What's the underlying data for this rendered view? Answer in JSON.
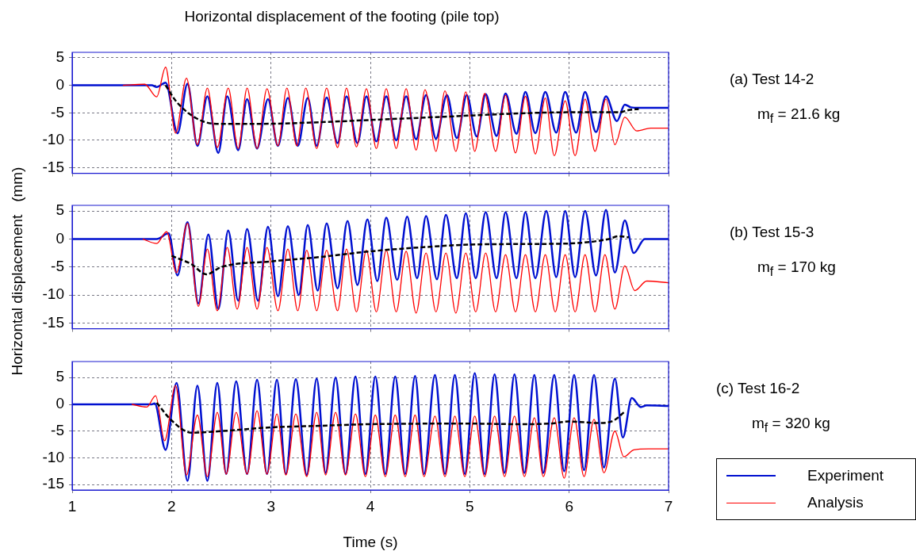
{
  "chart_data": [
    {
      "type": "line",
      "title": "Horizontal displacement of the footing (pile top)",
      "annotations": [
        "(a) Test 14-2",
        "m$_{f}$ = 21.6 kg"
      ],
      "xlim": [
        1,
        7
      ],
      "xticks": [
        1,
        2,
        3,
        4,
        5,
        6,
        7
      ],
      "ylim": [
        -16,
        6
      ],
      "yticks": [
        -15,
        -10,
        -5,
        0,
        5
      ],
      "grid": true,
      "tick_labels": "y",
      "marker": "none",
      "series": [
        {
          "color": "#0010d0",
          "line_style": "solid",
          "x": [
            1,
            1.8,
            1.85,
            1.94,
            2.06,
            2.16,
            2.26,
            2.36,
            2.47,
            2.56,
            2.67,
            2.76,
            2.86,
            2.97,
            3.07,
            3.17,
            3.27,
            3.37,
            3.46,
            3.56,
            3.67,
            3.76,
            3.87,
            3.96,
            4.06,
            4.16,
            4.26,
            4.36,
            4.46,
            4.56,
            4.66,
            4.77,
            4.87,
            4.97,
            5.07,
            5.16,
            5.27,
            5.36,
            5.47,
            5.56,
            5.66,
            5.76,
            5.87,
            5.96,
            6.07,
            6.16,
            6.27,
            6.37,
            6.48,
            6.56,
            6.62,
            6.7,
            7
          ],
          "values": [
            0,
            0,
            -0.3,
            0.5,
            -8.7,
            0.3,
            -11,
            -2,
            -12.3,
            -2,
            -11.8,
            -2.5,
            -11.5,
            -2.5,
            -11,
            -2.3,
            -11,
            -2.3,
            -11,
            -2.2,
            -10.5,
            -2,
            -10.5,
            -2,
            -10.2,
            -2,
            -10,
            -2,
            -9.8,
            -1.8,
            -9.7,
            -1.8,
            -9.6,
            -1.8,
            -9.3,
            -1.6,
            -9.2,
            -1.5,
            -8.8,
            -1.2,
            -8.7,
            -1.2,
            -8.6,
            -1.2,
            -8.6,
            -1.2,
            -8.5,
            -2,
            -6.5,
            -3.5,
            -4,
            -4.1,
            -4.1
          ]
        },
        {
          "color": "#ff0000",
          "line_style": "solid",
          "x": [
            1.51,
            1.73,
            1.85,
            1.94,
            2.04,
            2.15,
            2.26,
            2.36,
            2.46,
            2.57,
            2.67,
            2.76,
            2.86,
            2.96,
            3.07,
            3.16,
            3.26,
            3.35,
            3.46,
            3.56,
            3.67,
            3.76,
            3.86,
            3.96,
            4.06,
            4.16,
            4.26,
            4.36,
            4.46,
            4.55,
            4.66,
            4.75,
            4.86,
            4.96,
            5.05,
            5.15,
            5.26,
            5.36,
            5.46,
            5.56,
            5.66,
            5.76,
            5.85,
            5.96,
            6.06,
            6.16,
            6.26,
            6.37,
            6.46,
            6.56,
            6.68,
            6.82,
            7
          ],
          "values": [
            0,
            0.2,
            -2.1,
            3.3,
            -8.7,
            1.3,
            -10.8,
            -0.5,
            -11.3,
            -0.5,
            -11.5,
            -0.5,
            -11.5,
            -0.6,
            -11,
            -0.5,
            -11,
            -0.5,
            -11.5,
            -0.5,
            -11.3,
            -0.5,
            -11.2,
            -0.6,
            -11.5,
            -0.6,
            -11.5,
            -0.6,
            -11.8,
            -0.8,
            -12,
            -1,
            -12,
            -1.2,
            -12,
            -1.5,
            -12,
            -1.8,
            -12.3,
            -2,
            -12.5,
            -2.3,
            -12.8,
            -2.8,
            -12.8,
            -2.5,
            -12,
            -2.5,
            -10.8,
            -5.8,
            -8.3,
            -7.8,
            -7.8
          ]
        },
        {
          "color": "#000000",
          "line_style": "dashed",
          "x": [
            1.94,
            2.05,
            2.25,
            2.45,
            2.9,
            3.5,
            4,
            4.5,
            5,
            5.5,
            6,
            6.5,
            6.6,
            6.7
          ],
          "values": [
            0,
            -3,
            -6,
            -7,
            -7,
            -6.7,
            -6.3,
            -5.9,
            -5.5,
            -5.1,
            -4.9,
            -4.9,
            -4.5,
            -4.3
          ]
        }
      ]
    },
    {
      "type": "line",
      "ylabel": "Horizontal displacement   (mm)",
      "annotations": [
        "(b) Test 15-3",
        "m$_{f}$ = 170 kg"
      ],
      "xlim": [
        1,
        7
      ],
      "xticks": [
        1,
        2,
        3,
        4,
        5,
        6,
        7
      ],
      "ylim": [
        -16,
        6
      ],
      "yticks": [
        -15,
        -10,
        -5,
        0,
        5
      ],
      "grid": true,
      "tick_labels": "y",
      "marker": "none",
      "series": [
        {
          "color": "#0010d0",
          "line_style": "solid",
          "x": [
            1,
            1.85,
            1.97,
            2.06,
            2.16,
            2.27,
            2.37,
            2.47,
            2.57,
            2.67,
            2.76,
            2.87,
            2.97,
            3.07,
            3.17,
            3.28,
            3.37,
            3.47,
            3.56,
            3.67,
            3.77,
            3.87,
            3.97,
            4.07,
            4.16,
            4.27,
            4.37,
            4.47,
            4.56,
            4.67,
            4.76,
            4.87,
            4.96,
            5.06,
            5.16,
            5.27,
            5.36,
            5.47,
            5.56,
            5.66,
            5.77,
            5.87,
            5.96,
            6.06,
            6.16,
            6.27,
            6.37,
            6.46,
            6.56,
            6.65,
            6.76,
            7
          ],
          "values": [
            0,
            0,
            1,
            -6.5,
            3,
            -11.5,
            0.8,
            -12.5,
            1.5,
            -11,
            1.8,
            -11,
            2.2,
            -10.2,
            2.3,
            -10,
            2.5,
            -9.2,
            2.8,
            -8.8,
            3.2,
            -8.2,
            3.5,
            -7.5,
            3.8,
            -7.3,
            4,
            -7,
            4.1,
            -7.2,
            4.3,
            -7,
            4.6,
            -7,
            4.8,
            -7,
            4.8,
            -7,
            4.8,
            -7,
            5,
            -6.8,
            5,
            -6.8,
            5,
            -6.5,
            5.2,
            -6,
            3.3,
            -2.5,
            0,
            0
          ]
        },
        {
          "color": "#ff0000",
          "line_style": "solid",
          "x": [
            1.71,
            1.85,
            1.95,
            2.05,
            2.16,
            2.27,
            2.36,
            2.46,
            2.56,
            2.66,
            2.76,
            2.86,
            2.96,
            3.07,
            3.17,
            3.27,
            3.36,
            3.46,
            3.56,
            3.67,
            3.76,
            3.86,
            3.96,
            4.06,
            4.16,
            4.26,
            4.36,
            4.46,
            4.56,
            4.66,
            4.76,
            4.86,
            4.96,
            5.06,
            5.16,
            5.26,
            5.36,
            5.46,
            5.56,
            5.66,
            5.76,
            5.86,
            5.96,
            6.06,
            6.16,
            6.26,
            6.36,
            6.46,
            6.56,
            6.66,
            6.78,
            7
          ],
          "values": [
            0,
            -0.8,
            1.3,
            -6,
            2.8,
            -12,
            -1.8,
            -12.8,
            -1.5,
            -12.5,
            -1.5,
            -12.5,
            -1.5,
            -12.8,
            -1.8,
            -12.8,
            -2,
            -12.8,
            -2,
            -12.8,
            -1.8,
            -13,
            -2,
            -13,
            -2,
            -13,
            -2.2,
            -13.2,
            -2.5,
            -13,
            -2.5,
            -13.2,
            -2.5,
            -13,
            -2.5,
            -13,
            -2.8,
            -13,
            -2.8,
            -13,
            -2.8,
            -13,
            -2.8,
            -13,
            -2.8,
            -13,
            -2.8,
            -12.5,
            -4.8,
            -9.2,
            -7.5,
            -7.8
          ]
        },
        {
          "color": "#000000",
          "line_style": "dashed",
          "x": [
            2,
            2.2,
            2.35,
            2.5,
            3,
            3.5,
            4,
            4.5,
            5,
            5.5,
            6,
            6.4,
            6.5,
            6.6
          ],
          "values": [
            -3,
            -4.5,
            -6.3,
            -5,
            -4,
            -3.2,
            -2.2,
            -1.5,
            -1,
            -0.9,
            -0.8,
            0,
            0.5,
            0.3
          ]
        }
      ]
    },
    {
      "type": "line",
      "xlabel": "Time (s)",
      "annotations": [
        "(c) Test 16-2",
        "m$_{f}$ = 320 kg"
      ],
      "xlim": [
        1,
        7
      ],
      "xticks": [
        1,
        2,
        3,
        4,
        5,
        6,
        7
      ],
      "ylim": [
        -16,
        8
      ],
      "yticks": [
        -15,
        -10,
        -5,
        0,
        5
      ],
      "grid": true,
      "legend": "right",
      "marker": "none",
      "series": [
        {
          "name": "Experiment",
          "color": "#0010d0",
          "line_style": "solid",
          "x": [
            1,
            1.8,
            1.83,
            1.94,
            2.05,
            2.16,
            2.26,
            2.36,
            2.46,
            2.55,
            2.65,
            2.76,
            2.86,
            2.96,
            3.06,
            3.15,
            3.25,
            3.36,
            3.46,
            3.55,
            3.65,
            3.75,
            3.85,
            3.95,
            4.05,
            4.15,
            4.25,
            4.35,
            4.45,
            4.54,
            4.65,
            4.75,
            4.85,
            4.95,
            5.05,
            5.15,
            5.25,
            5.35,
            5.45,
            5.55,
            5.65,
            5.74,
            5.85,
            5.95,
            6.05,
            6.15,
            6.25,
            6.35,
            6.46,
            6.54,
            6.63,
            6.72,
            6.78,
            7
          ],
          "values": [
            0,
            0,
            0.2,
            -8.5,
            4,
            -14.3,
            3.5,
            -14.3,
            4,
            -13,
            4.3,
            -13,
            4.6,
            -13,
            4.6,
            -13,
            4.7,
            -13.2,
            4.8,
            -12.8,
            5,
            -13,
            5.2,
            -13,
            5.2,
            -13,
            5.2,
            -13,
            5.3,
            -13,
            5.5,
            -13,
            5.5,
            -13,
            5.8,
            -13,
            5.6,
            -12.8,
            5.6,
            -12.8,
            5.5,
            -12.8,
            5.5,
            -12.5,
            5.5,
            -12.3,
            5.5,
            -11.8,
            4.8,
            -6.2,
            1.2,
            -0.5,
            -0.2,
            -0.3
          ]
        },
        {
          "name": "Analysis",
          "color": "#ff0000",
          "line_style": "solid",
          "x": [
            1.6,
            1.75,
            1.84,
            1.93,
            2.04,
            2.15,
            2.26,
            2.36,
            2.46,
            2.55,
            2.65,
            2.76,
            2.86,
            2.96,
            3.06,
            3.15,
            3.25,
            3.36,
            3.46,
            3.55,
            3.65,
            3.75,
            3.85,
            3.95,
            4.05,
            4.15,
            4.25,
            4.35,
            4.45,
            4.54,
            4.65,
            4.75,
            4.85,
            4.95,
            5.05,
            5.15,
            5.25,
            5.35,
            5.45,
            5.55,
            5.65,
            5.74,
            5.85,
            5.95,
            6.05,
            6.15,
            6.25,
            6.35,
            6.46,
            6.55,
            6.65,
            6.8,
            7
          ],
          "values": [
            0,
            -0.5,
            1.6,
            -6.8,
            3.5,
            -13.2,
            -2,
            -13.5,
            -1.5,
            -13,
            -1.5,
            -13,
            -1.2,
            -13,
            -1.8,
            -13.2,
            -1.8,
            -13.5,
            -1.5,
            -13.2,
            -1.5,
            -13.2,
            -1.8,
            -13.5,
            -2,
            -13.5,
            -2,
            -13.5,
            -2,
            -13.5,
            -2.2,
            -13.5,
            -2.2,
            -13.5,
            -2.2,
            -13.5,
            -2.2,
            -13.5,
            -2.2,
            -13.5,
            -2.5,
            -13.5,
            -2.5,
            -13.8,
            -2.5,
            -13.5,
            -2.8,
            -12.8,
            -5,
            -9.8,
            -8.5,
            -8.3,
            -8.3
          ]
        },
        {
          "color": "#000000",
          "line_style": "dashed",
          "x": [
            1.85,
            2,
            2.2,
            2.5,
            3,
            3.5,
            4,
            5,
            5.5,
            5.8,
            6,
            6.3,
            6.45,
            6.55
          ],
          "values": [
            0.3,
            -3,
            -5.3,
            -5,
            -4.3,
            -4,
            -3.7,
            -3.6,
            -3.7,
            -3.6,
            -3.2,
            -3.5,
            -3,
            -1.5
          ]
        }
      ]
    }
  ]
}
